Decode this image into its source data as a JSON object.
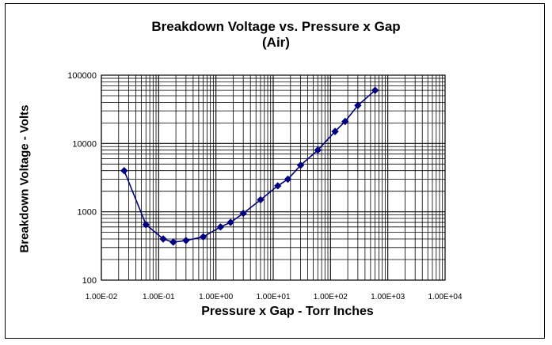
{
  "chart_data": {
    "type": "line",
    "title": "Breakdown Voltage vs. Pressure x Gap",
    "subtitle": "(Air)",
    "xlabel": "Pressure x Gap - Torr Inches",
    "ylabel": "Breakdown Voltage - Volts",
    "x_scale": "log",
    "y_scale": "log",
    "xlim": [
      0.01,
      10000
    ],
    "ylim": [
      100,
      100000
    ],
    "x_tick_labels": [
      "1.00E-02",
      "1.00E-01",
      "1.00E+00",
      "1.00E+01",
      "1.00E+02",
      "1.00E+03",
      "1.00E+04"
    ],
    "y_tick_labels": [
      "100",
      "1000",
      "10000",
      "100000"
    ],
    "grid": true,
    "series": [
      {
        "color": "#000080",
        "x": [
          0.025,
          0.06,
          0.12,
          0.18,
          0.3,
          0.6,
          1.2,
          1.8,
          3.0,
          6.0,
          12,
          18,
          30,
          60,
          120,
          180,
          300,
          600
        ],
        "y": [
          4000,
          650,
          400,
          360,
          380,
          430,
          600,
          700,
          950,
          1500,
          2400,
          3000,
          4800,
          8000,
          15000,
          21000,
          36000,
          60000
        ]
      }
    ]
  }
}
